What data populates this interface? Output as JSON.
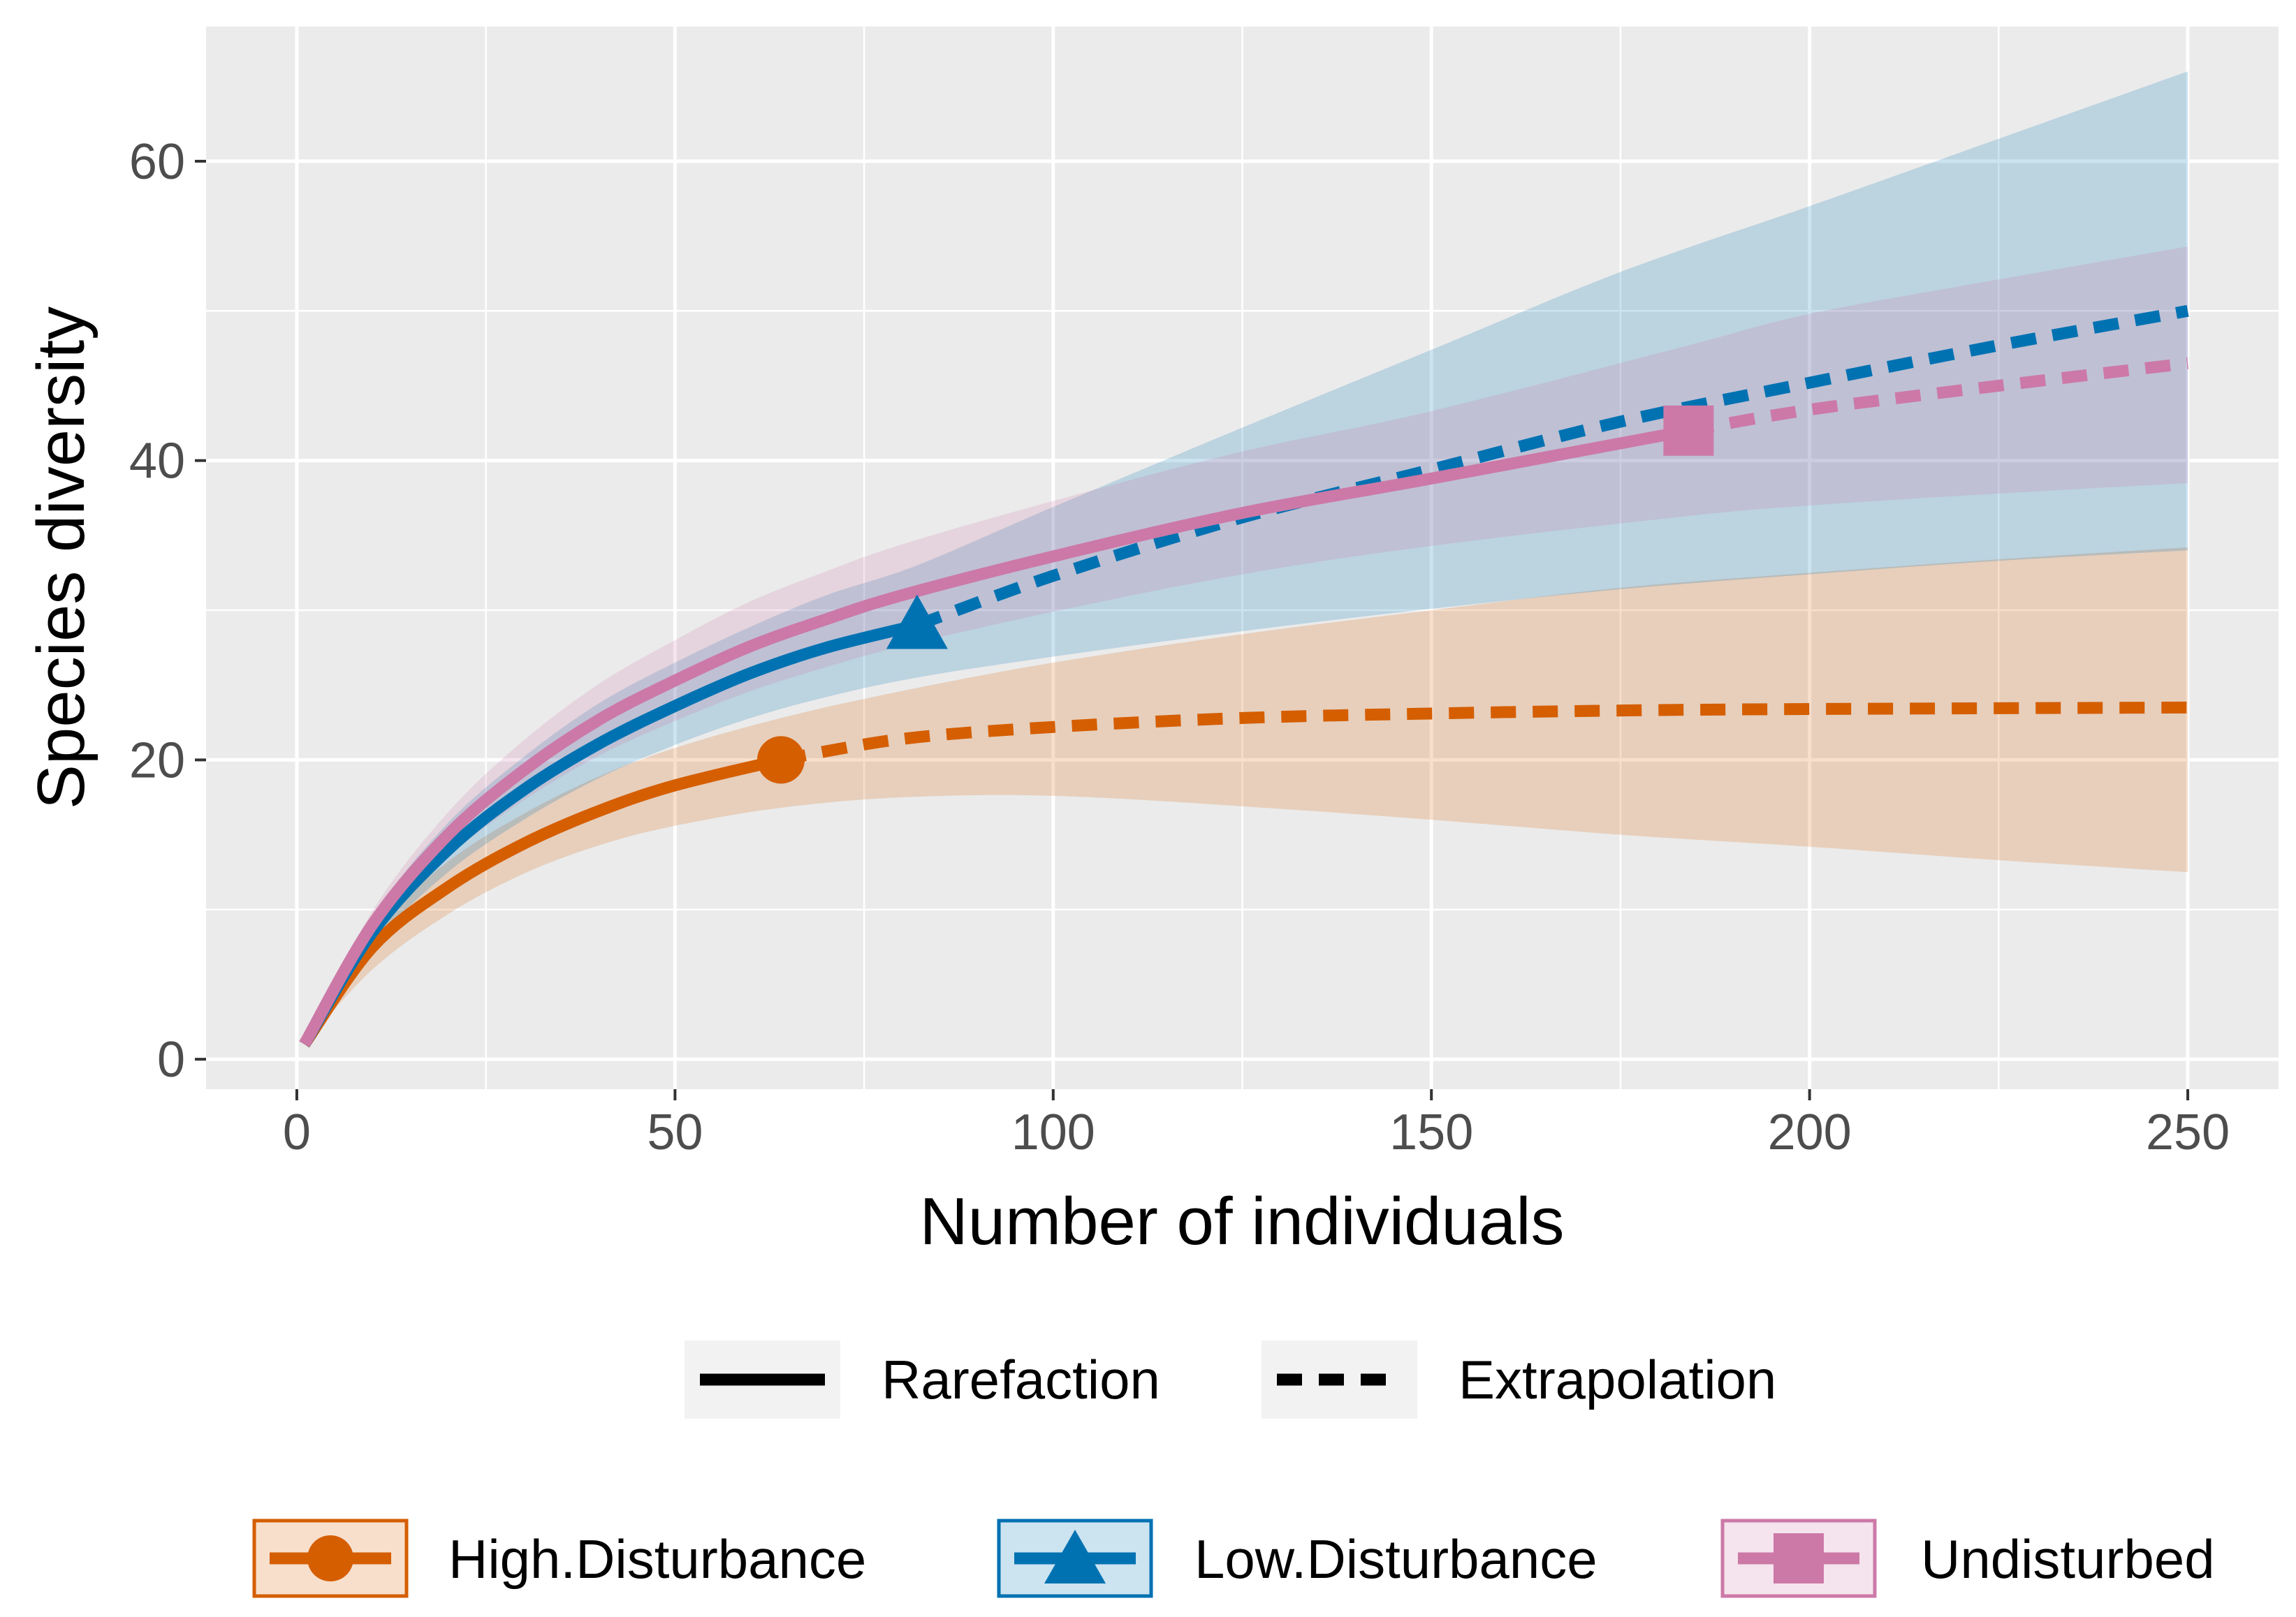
{
  "chart_data": {
    "type": "line",
    "title": "",
    "xlabel": "Number of individuals",
    "ylabel": "Species diversity",
    "xlim": [
      -12,
      262
    ],
    "ylim": [
      -2,
      69
    ],
    "xticks": [
      0,
      50,
      100,
      150,
      200,
      250
    ],
    "yticks": [
      0,
      20,
      40,
      60
    ],
    "grid": true,
    "legend_position": "bottom",
    "linetype_legend": [
      {
        "label": "Rarefaction",
        "style": "solid"
      },
      {
        "label": "Extrapolation",
        "style": "dashed"
      }
    ],
    "series": [
      {
        "name": "High.Disturbance",
        "color": "#D55E00",
        "marker": "circle",
        "observed": {
          "x": 64,
          "y": 20
        },
        "rarefaction": [
          [
            1,
            1
          ],
          [
            10,
            7.5
          ],
          [
            20,
            11.5
          ],
          [
            30,
            14.4
          ],
          [
            40,
            16.6
          ],
          [
            50,
            18.3
          ],
          [
            64,
            20
          ]
        ],
        "extrapolation": [
          [
            64,
            20
          ],
          [
            80,
            21.4
          ],
          [
            100,
            22.2
          ],
          [
            125,
            22.8
          ],
          [
            150,
            23.1
          ],
          [
            175,
            23.3
          ],
          [
            200,
            23.4
          ],
          [
            250,
            23.5
          ]
        ],
        "ci_lower": [
          [
            1,
            1
          ],
          [
            10,
            6
          ],
          [
            20,
            9.7
          ],
          [
            30,
            12.4
          ],
          [
            40,
            14.3
          ],
          [
            50,
            15.6
          ],
          [
            64,
            16.8
          ],
          [
            80,
            17.5
          ],
          [
            100,
            17.6
          ],
          [
            125,
            16.9
          ],
          [
            150,
            16
          ],
          [
            175,
            15
          ],
          [
            200,
            14.2
          ],
          [
            225,
            13.3
          ],
          [
            250,
            12.5
          ]
        ],
        "ci_upper": [
          [
            1,
            1
          ],
          [
            10,
            8.6
          ],
          [
            20,
            13.2
          ],
          [
            30,
            16.4
          ],
          [
            40,
            18.9
          ],
          [
            50,
            20.8
          ],
          [
            64,
            22.8
          ],
          [
            80,
            24.6
          ],
          [
            100,
            26.5
          ],
          [
            125,
            28.4
          ],
          [
            150,
            30
          ],
          [
            175,
            31.5
          ],
          [
            200,
            32.5
          ],
          [
            225,
            33.4
          ],
          [
            250,
            34.2
          ]
        ]
      },
      {
        "name": "Low.Disturbance",
        "color": "#0072B2",
        "marker": "triangle",
        "observed": {
          "x": 82,
          "y": 29
        },
        "rarefaction": [
          [
            1,
            1
          ],
          [
            10,
            8.5
          ],
          [
            20,
            14
          ],
          [
            30,
            18
          ],
          [
            40,
            21.1
          ],
          [
            50,
            23.6
          ],
          [
            60,
            25.8
          ],
          [
            70,
            27.5
          ],
          [
            82,
            29
          ]
        ],
        "extrapolation": [
          [
            82,
            29
          ],
          [
            100,
            32.3
          ],
          [
            125,
            36.2
          ],
          [
            150,
            39.4
          ],
          [
            175,
            42.6
          ],
          [
            200,
            45.2
          ],
          [
            225,
            47.7
          ],
          [
            250,
            50
          ]
        ],
        "ci_lower": [
          [
            1,
            1
          ],
          [
            10,
            7.6
          ],
          [
            20,
            12.5
          ],
          [
            30,
            16
          ],
          [
            40,
            18.8
          ],
          [
            50,
            21
          ],
          [
            60,
            22.8
          ],
          [
            70,
            24.2
          ],
          [
            82,
            25.5
          ],
          [
            100,
            26.9
          ],
          [
            125,
            28.6
          ],
          [
            150,
            30.1
          ],
          [
            175,
            31.4
          ],
          [
            200,
            32.4
          ],
          [
            225,
            33.3
          ],
          [
            250,
            34
          ]
        ],
        "ci_upper": [
          [
            1,
            1
          ],
          [
            10,
            9.5
          ],
          [
            20,
            15.8
          ],
          [
            30,
            20.2
          ],
          [
            40,
            23.8
          ],
          [
            50,
            26.5
          ],
          [
            60,
            28.9
          ],
          [
            70,
            31
          ],
          [
            82,
            33
          ],
          [
            100,
            36.9
          ],
          [
            125,
            42.2
          ],
          [
            150,
            47.4
          ],
          [
            175,
            52.6
          ],
          [
            200,
            57
          ],
          [
            225,
            61.5
          ],
          [
            250,
            66
          ]
        ]
      },
      {
        "name": "Undisturbed",
        "color": "#CC79A7",
        "marker": "square",
        "observed": {
          "x": 184,
          "y": 42
        },
        "rarefaction": [
          [
            1,
            1
          ],
          [
            10,
            9
          ],
          [
            20,
            15
          ],
          [
            30,
            19.3
          ],
          [
            40,
            22.7
          ],
          [
            50,
            25.3
          ],
          [
            60,
            27.6
          ],
          [
            70,
            29.4
          ],
          [
            80,
            31
          ],
          [
            100,
            33.6
          ],
          [
            125,
            36.5
          ],
          [
            150,
            38.8
          ],
          [
            184,
            42
          ]
        ],
        "extrapolation": [
          [
            184,
            42
          ],
          [
            200,
            43.4
          ],
          [
            225,
            45
          ],
          [
            250,
            46.5
          ]
        ],
        "ci_lower": [
          [
            1,
            1
          ],
          [
            10,
            8.1
          ],
          [
            20,
            13.5
          ],
          [
            30,
            17.3
          ],
          [
            40,
            20.3
          ],
          [
            50,
            22.6
          ],
          [
            60,
            24.6
          ],
          [
            70,
            26.2
          ],
          [
            80,
            27.6
          ],
          [
            100,
            29.9
          ],
          [
            125,
            32.4
          ],
          [
            150,
            34.3
          ],
          [
            184,
            36.3
          ],
          [
            200,
            37
          ],
          [
            225,
            37.8
          ],
          [
            250,
            38.5
          ]
        ],
        "ci_upper": [
          [
            1,
            1
          ],
          [
            10,
            9.9
          ],
          [
            20,
            16.5
          ],
          [
            30,
            21.3
          ],
          [
            40,
            25.1
          ],
          [
            50,
            28
          ],
          [
            60,
            30.6
          ],
          [
            70,
            32.6
          ],
          [
            80,
            34.4
          ],
          [
            100,
            37.3
          ],
          [
            125,
            40.6
          ],
          [
            150,
            43.3
          ],
          [
            184,
            47.7
          ],
          [
            200,
            49.8
          ],
          [
            225,
            52.1
          ],
          [
            250,
            54.3
          ]
        ]
      }
    ]
  }
}
